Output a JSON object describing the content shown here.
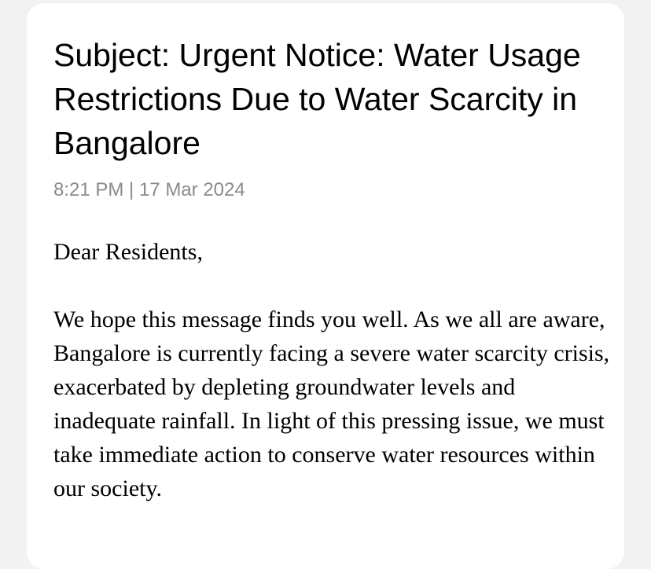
{
  "email": {
    "subject": "Subject: Urgent Notice: Water Usage Restrictions Due to Water Scarcity in Bangalore",
    "timestamp": "8:21 PM | 17 Mar 2024",
    "greeting": "Dear Residents,",
    "paragraph_1": "We hope this message finds you well. As we all are aware, Bangalore is currently facing a severe water scarcity crisis, exacerbated by depleting groundwater levels and inadequate rainfall. In light of this pressing issue, we must take immediate action to conserve water resources within our society."
  }
}
